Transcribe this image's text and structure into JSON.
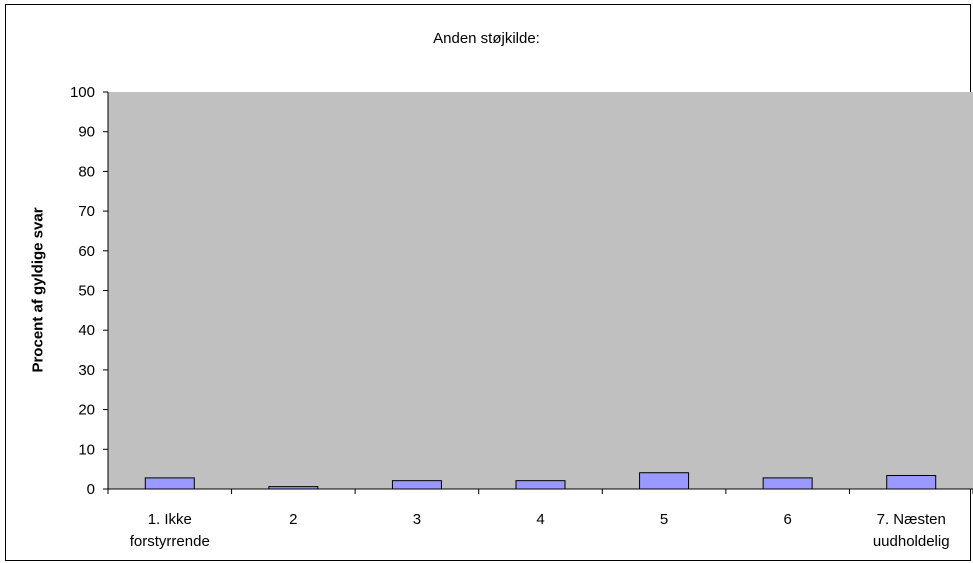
{
  "chart_data": {
    "type": "bar",
    "title": "Anden støjkilde:",
    "xlabel": "",
    "ylabel": "Procent af gyldige svar",
    "ylim": [
      0,
      100
    ],
    "yticks": [
      0,
      10,
      20,
      30,
      40,
      50,
      60,
      70,
      80,
      90,
      100
    ],
    "categories": [
      [
        "1. Ikke",
        "forstyrrende"
      ],
      [
        "2"
      ],
      [
        "3"
      ],
      [
        "4"
      ],
      [
        "5"
      ],
      [
        "6"
      ],
      [
        "7. Næsten",
        "uudholdelig"
      ]
    ],
    "values": [
      2.8,
      0.6,
      2.1,
      2.1,
      4.1,
      2.8,
      3.4
    ],
    "grid": false,
    "legend": "none",
    "colors": {
      "plot_background": "#c0c0c0",
      "bar_fill": "#9999ff",
      "bar_stroke": "#000000",
      "axis": "#000000"
    }
  }
}
